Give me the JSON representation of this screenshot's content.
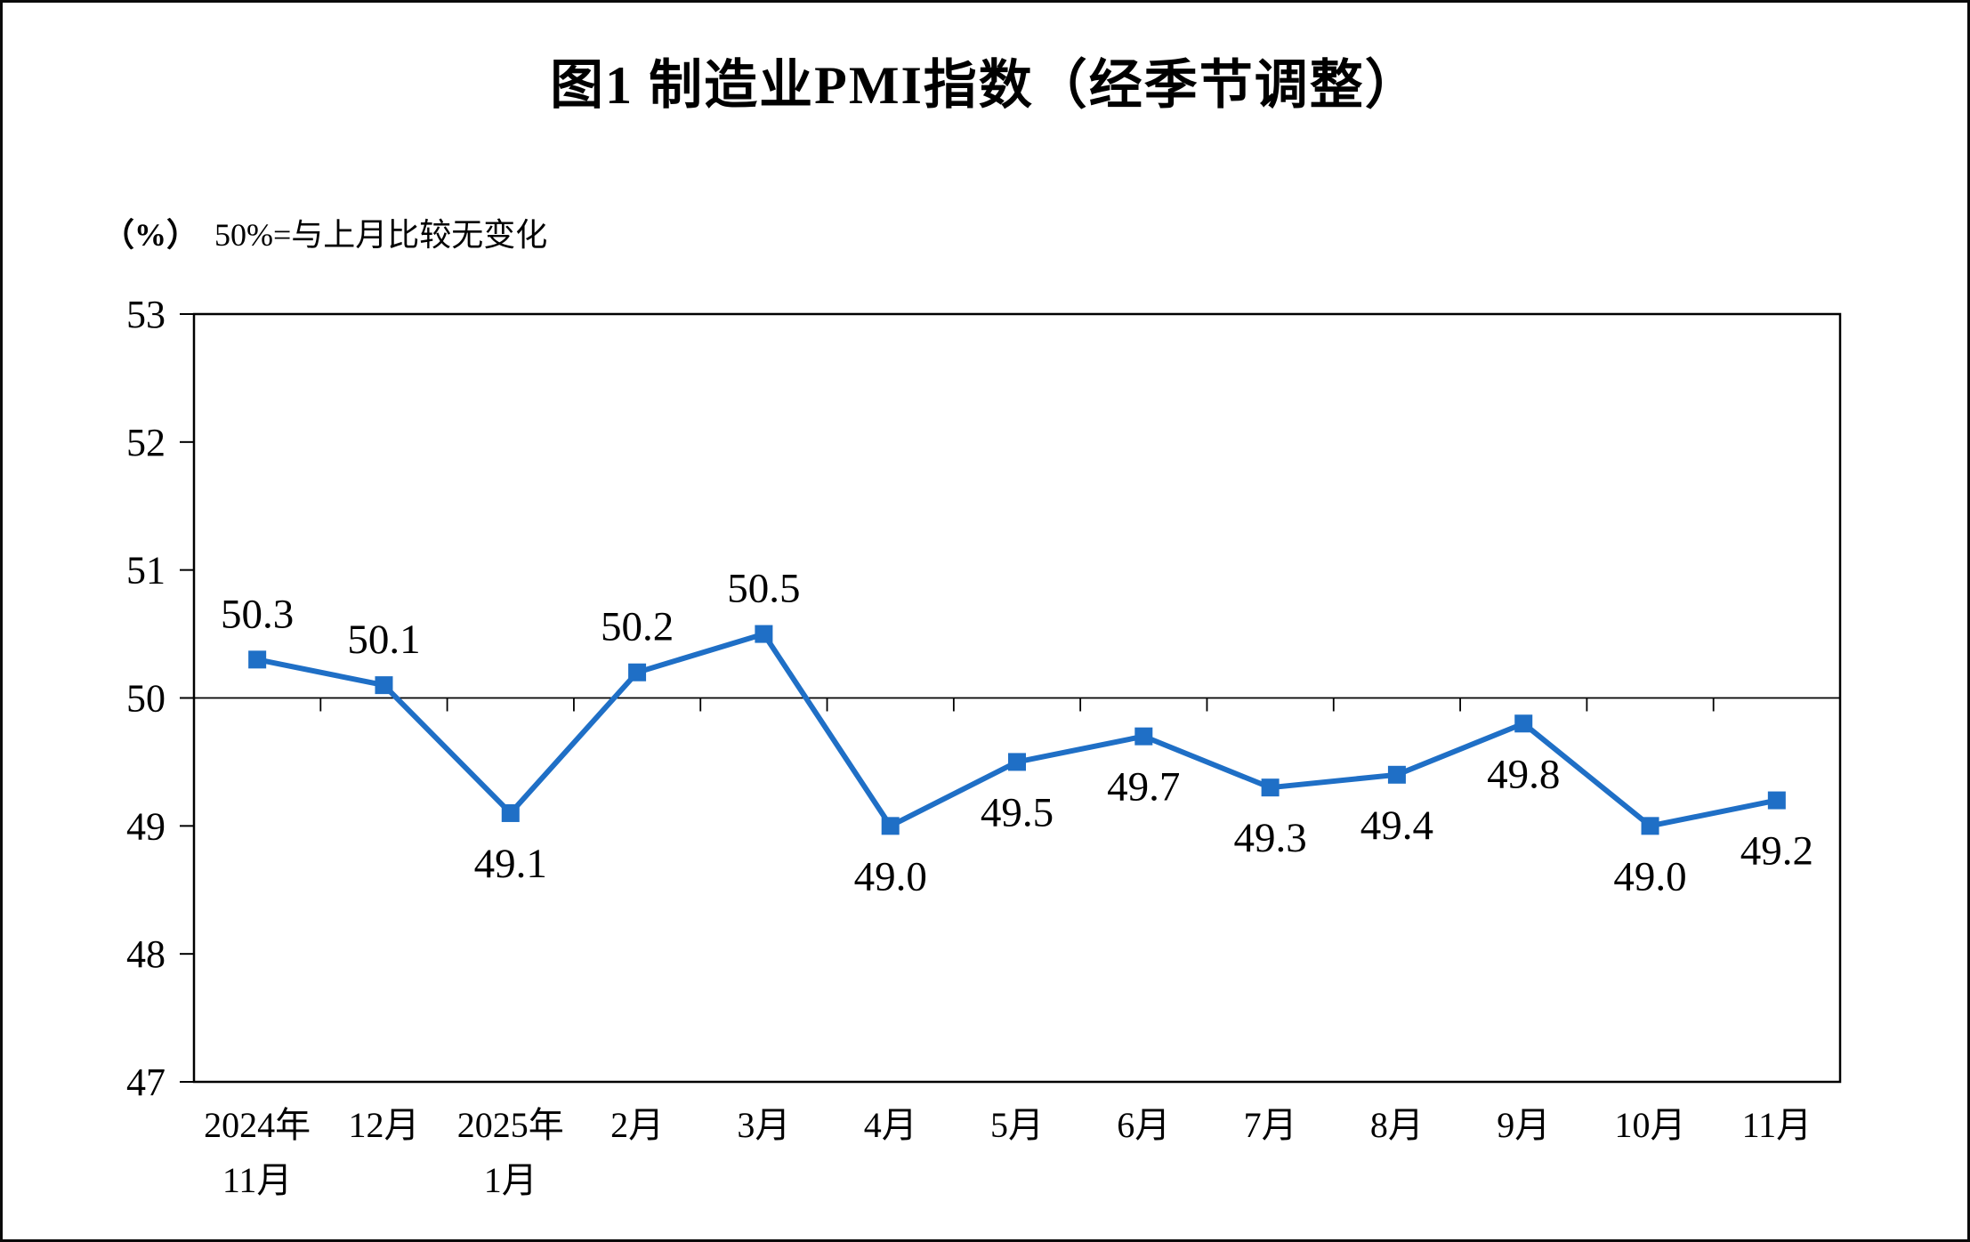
{
  "figure": {
    "title": "图1  制造业PMI指数（经季节调整）",
    "unit_label": "（%）",
    "axis_note": "50%=与上月比较无变化"
  },
  "chart_data": {
    "type": "line",
    "title": "图1 制造业PMI指数（经季节调整）",
    "categories": [
      [
        "2024年",
        "11月"
      ],
      [
        "12月"
      ],
      [
        "2025年",
        "1月"
      ],
      [
        "2月"
      ],
      [
        "3月"
      ],
      [
        "4月"
      ],
      [
        "5月"
      ],
      [
        "6月"
      ],
      [
        "7月"
      ],
      [
        "8月"
      ],
      [
        "9月"
      ],
      [
        "10月"
      ],
      [
        "11月"
      ]
    ],
    "series": [
      {
        "name": "制造业PMI",
        "values": [
          50.3,
          50.1,
          49.1,
          50.2,
          50.5,
          49.0,
          49.5,
          49.7,
          49.3,
          49.4,
          49.8,
          49.0,
          49.2
        ]
      }
    ],
    "data_labels": [
      "50.3",
      "50.1",
      "49.1",
      "50.2",
      "50.5",
      "49.0",
      "49.5",
      "49.7",
      "49.3",
      "49.4",
      "49.8",
      "49.0",
      "49.2"
    ],
    "ylim": [
      47,
      53
    ],
    "yticks": [
      47,
      48,
      49,
      50,
      51,
      52,
      53
    ],
    "ytick_step": 1,
    "reference_line": 50,
    "line_color": "#1F6FC6",
    "marker": "square",
    "grid": false,
    "legend": "none",
    "xlabel": "",
    "ylabel": "（%）"
  }
}
